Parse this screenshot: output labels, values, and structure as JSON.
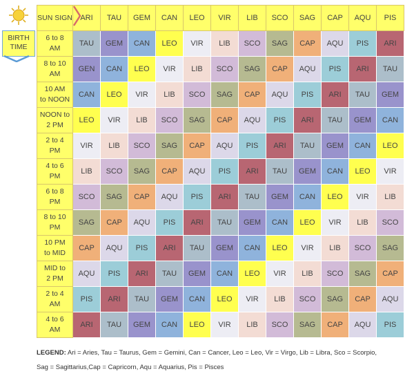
{
  "header": {
    "corner_label": "SUN SIGN",
    "signs": [
      "ARI",
      "TAU",
      "GEM",
      "CAN",
      "LEO",
      "VIR",
      "LIB",
      "SCO",
      "SAG",
      "CAP",
      "AQU",
      "PIS"
    ]
  },
  "birth_time_label": [
    "BIRTH",
    "TIME"
  ],
  "colors": {
    "ARI": "#b86672",
    "TAU": "#acbeca",
    "GEM": "#9993cc",
    "CAN": "#8fb3dc",
    "LEO": "#ffff4f",
    "VIR": "#ededf4",
    "LIB": "#f3dcd4",
    "SCO": "#d2bbd8",
    "SAG": "#b6ba91",
    "CAP": "#f0b079",
    "AQU": "#dcd8e9",
    "PIS": "#9ccdd8",
    "header": "#ffff6a"
  },
  "rows": [
    {
      "time": [
        "6 to 8",
        "AM"
      ],
      "cells": [
        "TAU",
        "GEM",
        "CAN",
        "LEO",
        "VIR",
        "LIB",
        "SCO",
        "SAG",
        "CAP",
        "AQU",
        "PIS",
        "ARI"
      ]
    },
    {
      "time": [
        "8 to 10",
        "AM"
      ],
      "cells": [
        "GEN",
        "CAN",
        "LEO",
        "VIR",
        "LIB",
        "SCO",
        "SAG",
        "CAP",
        "AQU",
        "PIS",
        "ARI",
        "TAU"
      ]
    },
    {
      "time": [
        "10 AM",
        "to NOON"
      ],
      "cells": [
        "CAN",
        "LEO",
        "VIR",
        "LIB",
        "SCO",
        "SAG",
        "CAP",
        "AQU",
        "PIS",
        "ARI",
        "TAU",
        "GEM"
      ]
    },
    {
      "time": [
        "NOON to",
        "2 PM"
      ],
      "cells": [
        "LEO",
        "VIR",
        "LIB",
        "SCO",
        "SAG",
        "CAP",
        "AQU",
        "PIS",
        "ARI",
        "TAU",
        "GEM",
        "CAN"
      ]
    },
    {
      "time": [
        "2 to 4",
        "PM"
      ],
      "cells": [
        "VIR",
        "LIB",
        "SCO",
        "SAG",
        "CAP",
        "AQU",
        "PIS",
        "ARI",
        "TAU",
        "GEM",
        "CAN",
        "LEO"
      ]
    },
    {
      "time": [
        "4 to 6",
        "PM"
      ],
      "cells": [
        "LIB",
        "SCO",
        "SAG",
        "CAP",
        "AQU",
        "PIS",
        "ARI",
        "TAU",
        "GEM",
        "CAN",
        "LEO",
        "VIR"
      ]
    },
    {
      "time": [
        "6 to 8",
        "PM"
      ],
      "cells": [
        "SCO",
        "SAG",
        "CAP",
        "AQU",
        "PIS",
        "ARI",
        "TAU",
        "GEM",
        "CAN",
        "LEO",
        "VIR",
        "LIB"
      ]
    },
    {
      "time": [
        "8 to 10",
        "PM"
      ],
      "cells": [
        "SAG",
        "CAP",
        "AQU",
        "PIS",
        "ARI",
        "TAU",
        "GEM",
        "CAN",
        "LEO",
        "VIR",
        "LIB",
        "SCO"
      ]
    },
    {
      "time": [
        "10 PM",
        "to MID"
      ],
      "cells": [
        "CAP",
        "AQU",
        "PIS",
        "ARI",
        "TAU",
        "GEM",
        "CAN",
        "LEO",
        "VIR",
        "LIB",
        "SCO",
        "SAG"
      ]
    },
    {
      "time": [
        "MID to",
        "2 PM"
      ],
      "cells": [
        "AQU",
        "PIS",
        "ARI",
        "TAU",
        "GEM",
        "CAN",
        "LEO",
        "VIR",
        "LIB",
        "SCO",
        "SAG",
        "CAP"
      ]
    },
    {
      "time": [
        "2 to 4",
        "AM"
      ],
      "cells": [
        "PIS",
        "ARI",
        "TAU",
        "GEM",
        "CAN",
        "LEO",
        "VIR",
        "LIB",
        "SCO",
        "SAG",
        "CAP",
        "AQU"
      ]
    },
    {
      "time": [
        "4 to 6",
        "AM"
      ],
      "cells": [
        "ARI",
        "TAU",
        "GEM",
        "CAN",
        "LEO",
        "VIR",
        "LIB",
        "SCO",
        "SAG",
        "CAP",
        "AQU",
        "PIS"
      ]
    }
  ],
  "legend": {
    "title": "LEGEND:",
    "line1": "Ari = Aries, Tau = Taurus, Gem = Gemini, Can = Cancer, Leo = Leo, Vir = Virgo, Lib = Libra, Sco = Scorpio,",
    "line2": "Sag = Sagittarius,Cap = Capricorn, Aqu = Aquarius, Pis = Pisces"
  },
  "icons": {
    "sun": "sun-icon",
    "arrow_right": "chevron-right-icon",
    "arrow_down": "arrow-down-icon"
  }
}
